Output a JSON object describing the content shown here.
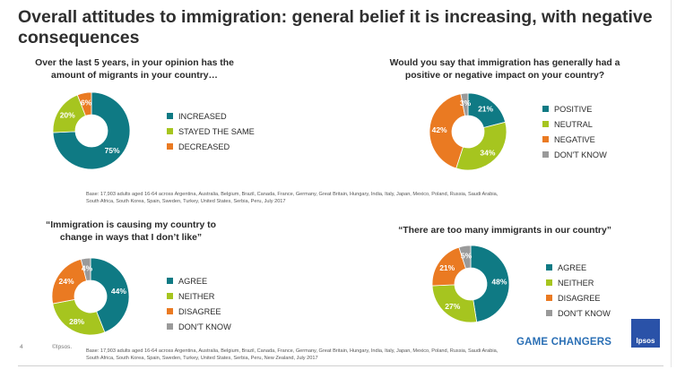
{
  "title": "Overall attitudes to immigration: general belief it is increasing, with negative consequences",
  "footer": {
    "page_number": "4",
    "copyright": "©Ipsos.",
    "brand_text": "GAME CHANGERS",
    "logo_text": "Ipsos"
  },
  "base_notes": {
    "top": "Base: 17,903 adults aged 16-64 across  Argentina, Australia, Belgium, Brazil, Canada, France, Germany, Great Britain, Hungary, India, Italy, Japan, Mexico, Poland, Russia, Saudi Arabia, South Africa, South Korea, Spain, Sweden, Turkey, United States, Serbia, Peru, July 2017",
    "bottom": "Base: 17,903 adults aged 16-64 across  Argentina, Australia, Belgium, Brazil, Canada, France, Germany, Great Britain, Hungary, India, Italy, Japan, Mexico, Poland, Russia, Saudi Arabia, South Africa, South Korea, Spain, Sweden, Turkey, United States, Serbia, Peru, New Zealand,  July 2017"
  },
  "chart_data": [
    {
      "type": "pie",
      "title": "Over the last 5 years, in your opinion has the amount of migrants in your country…",
      "categories": [
        "INCREASED",
        "STAYED THE SAME",
        "DECREASED"
      ],
      "values": [
        75,
        20,
        6
      ],
      "labels": [
        "75%",
        "20%",
        "6%"
      ],
      "colors": [
        "#0f7a84",
        "#a6c51f",
        "#ea7a22"
      ],
      "legend": "right"
    },
    {
      "type": "pie",
      "title": "Would you say that immigration has generally had a positive or negative impact on your country?",
      "categories": [
        "POSITIVE",
        "NEUTRAL",
        "NEGATIVE",
        "DON'T KNOW"
      ],
      "values": [
        21,
        34,
        42,
        3
      ],
      "labels": [
        "21%",
        "34%",
        "42%",
        "3%"
      ],
      "colors": [
        "#0f7a84",
        "#a6c51f",
        "#ea7a22",
        "#9a9a9a"
      ],
      "legend": "right"
    },
    {
      "type": "pie",
      "title": "“Immigration is causing my country to change in ways that I don’t like”",
      "categories": [
        "AGREE",
        "NEITHER",
        "DISAGREE",
        "DON'T KNOW"
      ],
      "values": [
        44,
        28,
        24,
        4
      ],
      "labels": [
        "44%",
        "28%",
        "24%",
        "4%"
      ],
      "colors": [
        "#0f7a84",
        "#a6c51f",
        "#ea7a22",
        "#9a9a9a"
      ],
      "legend": "right"
    },
    {
      "type": "pie",
      "title": "“There are too many immigrants in our country”",
      "categories": [
        "AGREE",
        "NEITHER",
        "DISAGREE",
        "DON'T KNOW"
      ],
      "values": [
        48,
        27,
        21,
        5
      ],
      "labels": [
        "48%",
        "27%",
        "21%",
        "5%"
      ],
      "colors": [
        "#0f7a84",
        "#a6c51f",
        "#ea7a22",
        "#9a9a9a"
      ],
      "legend": "right"
    }
  ]
}
